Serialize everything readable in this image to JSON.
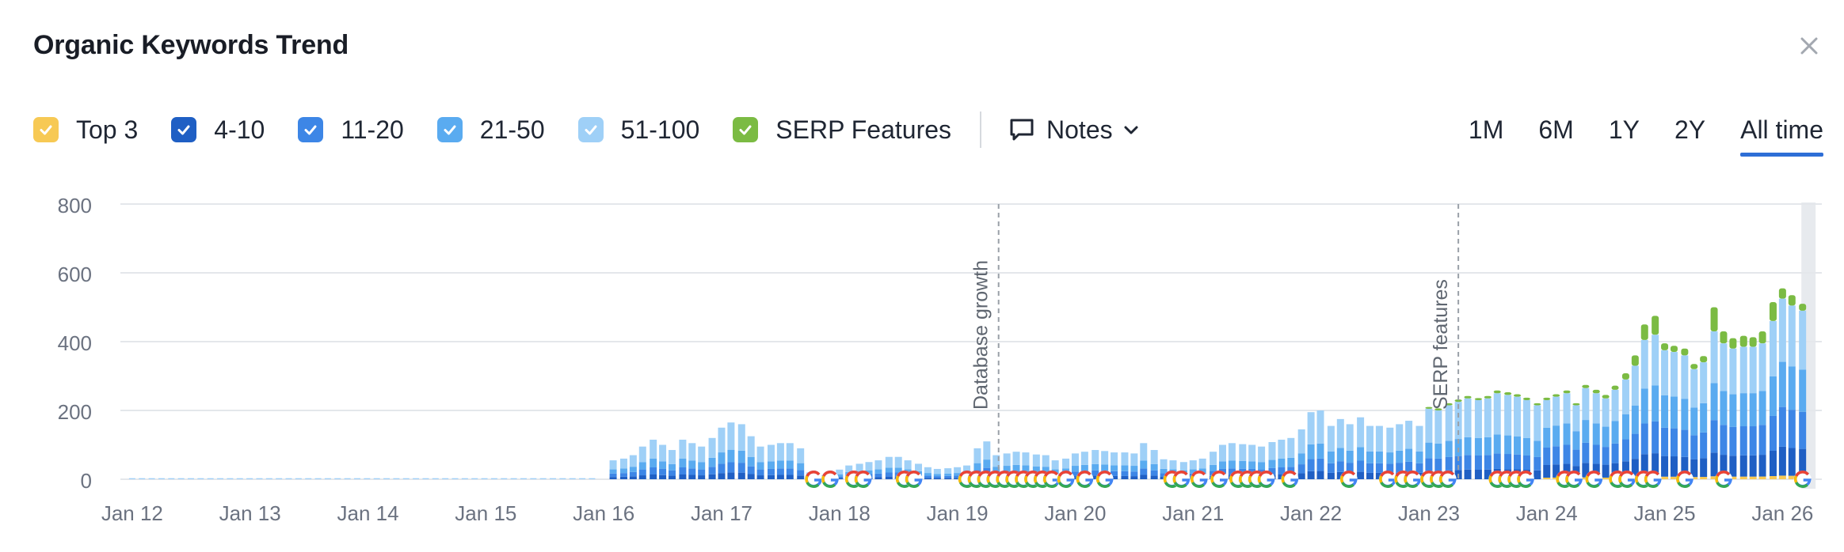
{
  "title": "Organic Keywords Trend",
  "legend": [
    {
      "label": "Top 3",
      "color": "#f7c954"
    },
    {
      "label": "4-10",
      "color": "#1f5fc4"
    },
    {
      "label": "11-20",
      "color": "#3d86e6"
    },
    {
      "label": "21-50",
      "color": "#5aabf0"
    },
    {
      "label": "51-100",
      "color": "#9fd0f7"
    },
    {
      "label": "SERP Features",
      "color": "#7bbb43"
    }
  ],
  "notes_label": "Notes",
  "ranges": [
    "1M",
    "6M",
    "1Y",
    "2Y",
    "All time"
  ],
  "active_range": "All time",
  "chart_data": {
    "type": "bar",
    "stacked": true,
    "title": "Organic Keywords Trend",
    "xlabel": "",
    "ylabel": "",
    "ylim": [
      0,
      800
    ],
    "yticks": [
      0,
      200,
      400,
      600,
      800
    ],
    "xticks": [
      "Jan 12",
      "Jan 13",
      "Jan 14",
      "Jan 15",
      "Jan 16",
      "Jan 17",
      "Jan 18",
      "Jan 19",
      "Jan 20",
      "Jan 21",
      "Jan 22",
      "Jan 23",
      "Jan 24",
      "Jan 25",
      "Jan 26"
    ],
    "grid": true,
    "annotations": [
      {
        "x": 2019.35,
        "label": "Database growth"
      },
      {
        "x": 2023.25,
        "label": "SERP features"
      }
    ],
    "series_order": [
      "Top 3",
      "4-10",
      "11-20",
      "21-50",
      "51-100",
      "SERP Features"
    ],
    "x": [
      2016.08,
      2016.17,
      2016.25,
      2016.33,
      2016.42,
      2016.5,
      2016.58,
      2016.67,
      2016.75,
      2016.83,
      2016.92,
      2017.0,
      2017.08,
      2017.17,
      2017.25,
      2017.33,
      2017.42,
      2017.5,
      2017.58,
      2017.67,
      2017.75,
      2017.83,
      2017.92,
      2018.0,
      2018.08,
      2018.17,
      2018.25,
      2018.33,
      2018.42,
      2018.5,
      2018.58,
      2018.67,
      2018.75,
      2018.83,
      2018.92,
      2019.0,
      2019.08,
      2019.17,
      2019.25,
      2019.33,
      2019.42,
      2019.5,
      2019.58,
      2019.67,
      2019.75,
      2019.83,
      2019.92,
      2020.0,
      2020.08,
      2020.17,
      2020.25,
      2020.33,
      2020.42,
      2020.5,
      2020.58,
      2020.67,
      2020.75,
      2020.83,
      2020.92,
      2021.0,
      2021.08,
      2021.17,
      2021.25,
      2021.33,
      2021.42,
      2021.5,
      2021.58,
      2021.67,
      2021.75,
      2021.83,
      2021.92,
      2022.0,
      2022.08,
      2022.17,
      2022.25,
      2022.33,
      2022.42,
      2022.5,
      2022.58,
      2022.67,
      2022.75,
      2022.83,
      2022.92,
      2023.0,
      2023.08,
      2023.17,
      2023.25,
      2023.33,
      2023.42,
      2023.5,
      2023.58,
      2023.67,
      2023.75,
      2023.83,
      2023.92,
      2024.0,
      2024.08,
      2024.17,
      2024.25,
      2024.33,
      2024.42,
      2024.5,
      2024.58,
      2024.67,
      2024.75,
      2024.83,
      2024.92,
      2025.0,
      2025.08,
      2025.17,
      2025.25,
      2025.33,
      2025.42,
      2025.5,
      2025.58,
      2025.67,
      2025.75,
      2025.83,
      2025.92,
      2026.0,
      2026.08,
      2026.17
    ],
    "totals": [
      55,
      60,
      70,
      95,
      115,
      100,
      85,
      115,
      105,
      95,
      120,
      150,
      165,
      160,
      125,
      95,
      100,
      105,
      105,
      90,
      20,
      12,
      18,
      28,
      40,
      45,
      50,
      55,
      65,
      65,
      55,
      45,
      35,
      30,
      32,
      35,
      40,
      90,
      110,
      70,
      75,
      80,
      78,
      72,
      70,
      55,
      60,
      75,
      80,
      85,
      82,
      78,
      78,
      75,
      105,
      85,
      58,
      55,
      50,
      55,
      60,
      80,
      100,
      105,
      102,
      100,
      95,
      108,
      115,
      120,
      145,
      195,
      200,
      155,
      175,
      160,
      180,
      155,
      155,
      150,
      160,
      170,
      155,
      205,
      200,
      215,
      225,
      235,
      230,
      235,
      250,
      245,
      240,
      230,
      215,
      230,
      240,
      250,
      215,
      265,
      250,
      235,
      260,
      290,
      330,
      405,
      420,
      375,
      370,
      360,
      320,
      340,
      430,
      395,
      380,
      385,
      385,
      395,
      460,
      525,
      505,
      490
    ],
    "serp_totals": [
      0,
      0,
      0,
      0,
      0,
      0,
      0,
      0,
      0,
      0,
      0,
      0,
      0,
      0,
      0,
      0,
      0,
      0,
      0,
      0,
      0,
      0,
      0,
      0,
      0,
      0,
      0,
      0,
      0,
      0,
      0,
      0,
      0,
      0,
      0,
      0,
      0,
      0,
      0,
      0,
      0,
      0,
      0,
      0,
      0,
      0,
      0,
      0,
      0,
      0,
      0,
      0,
      0,
      0,
      0,
      0,
      0,
      0,
      0,
      0,
      0,
      0,
      0,
      0,
      0,
      0,
      0,
      0,
      0,
      0,
      0,
      0,
      0,
      0,
      0,
      0,
      0,
      0,
      0,
      0,
      0,
      0,
      0,
      5,
      6,
      6,
      7,
      7,
      6,
      7,
      8,
      8,
      7,
      7,
      6,
      7,
      7,
      8,
      6,
      9,
      10,
      10,
      12,
      18,
      30,
      45,
      55,
      20,
      18,
      20,
      15,
      18,
      70,
      35,
      30,
      32,
      28,
      35,
      55,
      30,
      30,
      20
    ],
    "sparse_start_x": 2012.0,
    "sparse_end_x": 2015.95,
    "sparse_level": 3,
    "serp_markers": [
      2017.78,
      2017.92,
      2018.12,
      2018.2,
      2018.55,
      2018.63,
      2019.08,
      2019.16,
      2019.24,
      2019.32,
      2019.4,
      2019.48,
      2019.56,
      2019.64,
      2019.72,
      2019.8,
      2019.92,
      2020.08,
      2020.25,
      2020.82,
      2020.9,
      2021.05,
      2021.22,
      2021.38,
      2021.46,
      2021.54,
      2021.62,
      2021.82,
      2022.32,
      2022.65,
      2022.78,
      2022.86,
      2023.0,
      2023.08,
      2023.16,
      2023.58,
      2023.66,
      2023.74,
      2023.82,
      2024.15,
      2024.23,
      2024.4,
      2024.6,
      2024.68,
      2024.82,
      2024.9,
      2025.17,
      2025.5,
      2026.17
    ]
  }
}
